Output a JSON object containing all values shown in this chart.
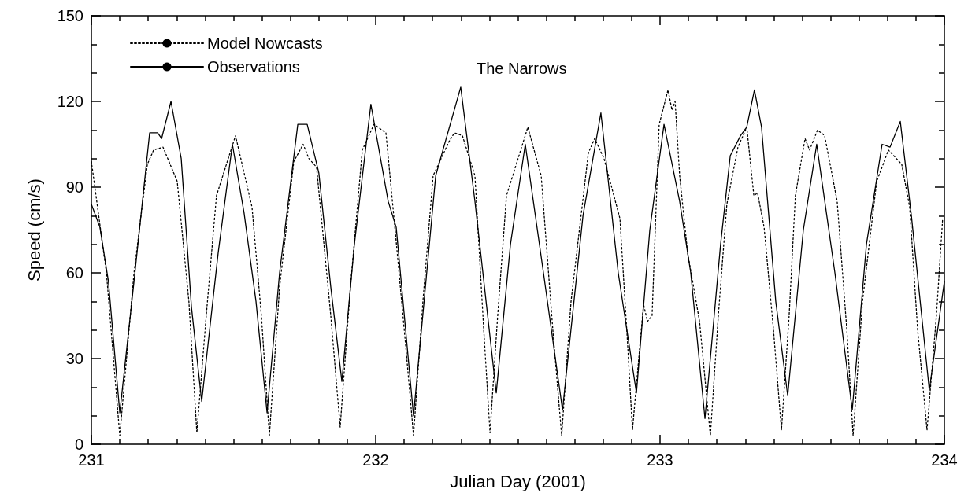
{
  "chart_data": {
    "type": "line",
    "title": "The Narrows",
    "xlabel": "Julian Day (2001)",
    "ylabel": "Speed (cm/s)",
    "xlim": [
      231,
      234
    ],
    "ylim": [
      0,
      150
    ],
    "xticks": [
      231,
      {
        "value": 231.1,
        "label": null
      },
      {
        "value": 231.2,
        "label": null
      },
      {
        "value": 231.3,
        "label": null
      },
      {
        "value": 231.4,
        "label": null
      },
      {
        "value": 231.5,
        "label": null
      },
      {
        "value": 231.6,
        "label": null
      },
      {
        "value": 231.7,
        "label": null
      },
      {
        "value": 231.8,
        "label": null
      },
      {
        "value": 231.9,
        "label": null
      },
      232,
      {
        "value": 232.1,
        "label": null
      },
      {
        "value": 232.2,
        "label": null
      },
      {
        "value": 232.3,
        "label": null
      },
      {
        "value": 232.4,
        "label": null
      },
      {
        "value": 232.5,
        "label": null
      },
      {
        "value": 232.6,
        "label": null
      },
      {
        "value": 232.7,
        "label": null
      },
      {
        "value": 232.8,
        "label": null
      },
      {
        "value": 232.9,
        "label": null
      },
      233,
      {
        "value": 233.1,
        "label": null
      },
      {
        "value": 233.2,
        "label": null
      },
      {
        "value": 233.3,
        "label": null
      },
      {
        "value": 233.4,
        "label": null
      },
      {
        "value": 233.5,
        "label": null
      },
      {
        "value": 233.6,
        "label": null
      },
      {
        "value": 233.7,
        "label": null
      },
      {
        "value": 233.8,
        "label": null
      },
      {
        "value": 233.9,
        "label": null
      },
      234
    ],
    "yticks": [
      0,
      {
        "value": 10,
        "label": null
      },
      {
        "value": 20,
        "label": null
      },
      30,
      {
        "value": 40,
        "label": null
      },
      {
        "value": 50,
        "label": null
      },
      60,
      {
        "value": 70,
        "label": null
      },
      {
        "value": 80,
        "label": null
      },
      90,
      {
        "value": 100,
        "label": null
      },
      {
        "value": 110,
        "label": null
      },
      120,
      {
        "value": 130,
        "label": null
      },
      {
        "value": 140,
        "label": null
      },
      150
    ],
    "grid": false,
    "legend": "top left",
    "marker": "none",
    "series": [
      {
        "name": "Model Nowcasts",
        "color": "#000000",
        "line_style": "dotted",
        "x": [
          231.0,
          231.053,
          231.1,
          231.15,
          231.197,
          231.219,
          231.252,
          231.302,
          231.343,
          231.371,
          231.404,
          231.44,
          231.507,
          231.565,
          231.598,
          231.626,
          231.662,
          231.712,
          231.745,
          231.765,
          231.792,
          231.842,
          231.875,
          231.911,
          231.953,
          231.994,
          232.036,
          232.072,
          232.105,
          232.133,
          232.166,
          232.202,
          232.258,
          232.277,
          232.305,
          232.349,
          232.38,
          232.402,
          232.429,
          232.46,
          232.535,
          232.582,
          232.623,
          232.654,
          232.687,
          232.748,
          232.77,
          232.803,
          232.859,
          232.886,
          232.903,
          232.942,
          232.956,
          232.972,
          232.997,
          233.028,
          233.042,
          233.053,
          233.069,
          233.097,
          233.139,
          233.177,
          233.205,
          233.235,
          233.274,
          233.305,
          233.33,
          233.343,
          233.366,
          233.399,
          233.427,
          233.454,
          233.476,
          233.51,
          233.526,
          233.554,
          233.579,
          233.623,
          233.657,
          233.679,
          233.712,
          233.762,
          233.781,
          233.803,
          233.85,
          233.878,
          233.906,
          233.939,
          233.972,
          233.994
        ],
        "values": [
          99,
          60,
          3,
          60,
          98,
          103,
          104,
          92,
          50,
          4,
          45,
          87,
          108,
          83,
          45,
          3,
          55,
          99,
          105,
          100,
          97,
          45,
          6,
          55,
          103,
          112,
          109,
          71,
          35,
          3,
          50,
          94,
          106,
          109,
          108,
          94,
          40,
          4,
          45,
          87,
          111,
          94,
          40,
          3,
          50,
          102,
          107,
          100,
          79,
          35,
          5,
          49,
          43,
          45,
          112,
          124,
          117,
          120,
          94,
          67,
          43,
          3,
          45,
          84,
          104,
          111,
          87,
          88,
          76,
          40,
          5,
          45,
          87,
          107,
          103,
          110,
          108,
          85,
          40,
          3,
          50,
          92,
          97,
          103,
          98,
          83,
          40,
          5,
          45,
          79
        ]
      },
      {
        "name": "Observations",
        "color": "#000000",
        "line_style": "solid",
        "x": [
          231.0,
          231.03,
          231.06,
          231.1,
          231.15,
          231.205,
          231.233,
          231.247,
          231.28,
          231.316,
          231.352,
          231.388,
          231.446,
          231.496,
          231.537,
          231.579,
          231.618,
          231.662,
          231.726,
          231.759,
          231.8,
          231.842,
          231.881,
          231.925,
          231.983,
          232.044,
          232.072,
          232.133,
          232.211,
          232.299,
          232.349,
          232.424,
          232.474,
          232.526,
          232.59,
          232.657,
          232.729,
          232.792,
          232.853,
          232.917,
          232.964,
          233.014,
          233.069,
          233.108,
          233.158,
          233.213,
          233.247,
          233.283,
          233.305,
          233.332,
          233.357,
          233.407,
          233.449,
          233.504,
          233.551,
          233.615,
          233.676,
          233.726,
          233.781,
          233.809,
          233.845,
          233.884,
          233.947,
          234.0
        ],
        "values": [
          84,
          76,
          57,
          11,
          57,
          109,
          109,
          107,
          120,
          100,
          48,
          15,
          67,
          105,
          81,
          50,
          11,
          60,
          112,
          112,
          95,
          55,
          22,
          70,
          119,
          85,
          76,
          10,
          94,
          125,
          85,
          18,
          70,
          105,
          60,
          12,
          80,
          116,
          60,
          18,
          75,
          112,
          85,
          60,
          9,
          70,
          101,
          108,
          111,
          124,
          111,
          50,
          17,
          75,
          105,
          60,
          12,
          70,
          105,
          104,
          113,
          80,
          19,
          57
        ]
      }
    ]
  }
}
